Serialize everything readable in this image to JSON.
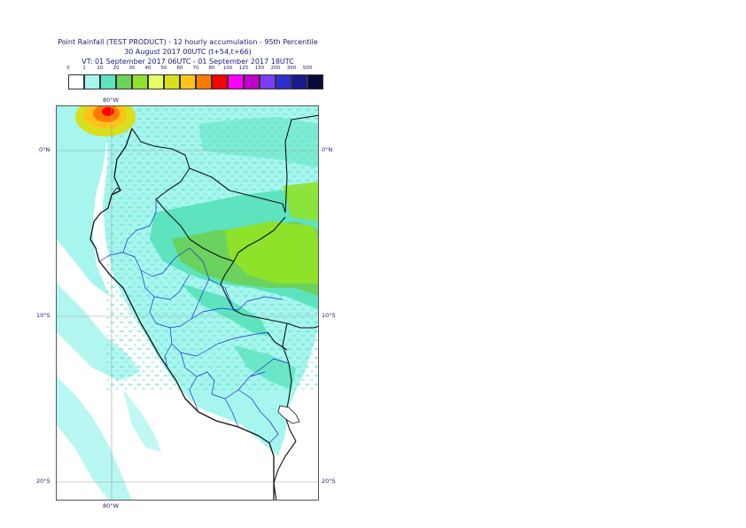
{
  "title": {
    "line1": "Point Rainfall (TEST PRODUCT) - 12 hourly accumulation - 95th Percentile",
    "line2": "30 August 2017 00UTC (t+54,t+66)",
    "line3": "VT: 01 September 2017 06UTC - 01 September 2017 18UTC"
  },
  "legend": {
    "ticks": [
      "0",
      "1",
      "10",
      "20",
      "30",
      "40",
      "50",
      "60",
      "70",
      "80",
      "100",
      "125",
      "150",
      "200",
      "300",
      "500"
    ],
    "colors": [
      "#ffffff",
      "#a6f5ef",
      "#5de3bd",
      "#6cd15a",
      "#8ee22a",
      "#e6ff66",
      "#d8df1c",
      "#ffc21a",
      "#ff7a00",
      "#ff0000",
      "#ff00ff",
      "#c000c8",
      "#7a3cff",
      "#2f2fcf",
      "#1a1a8a",
      "#0a0a3a"
    ]
  },
  "map": {
    "lon_labels": {
      "top": "80°W",
      "bottom": "80°W"
    },
    "lat_labels": {
      "eq_left": "0°N",
      "eq_right": "0°N",
      "s10_left": "10°S",
      "s10_right": "10°S",
      "s20_left": "20°S",
      "s20_right": "20°S"
    }
  }
}
